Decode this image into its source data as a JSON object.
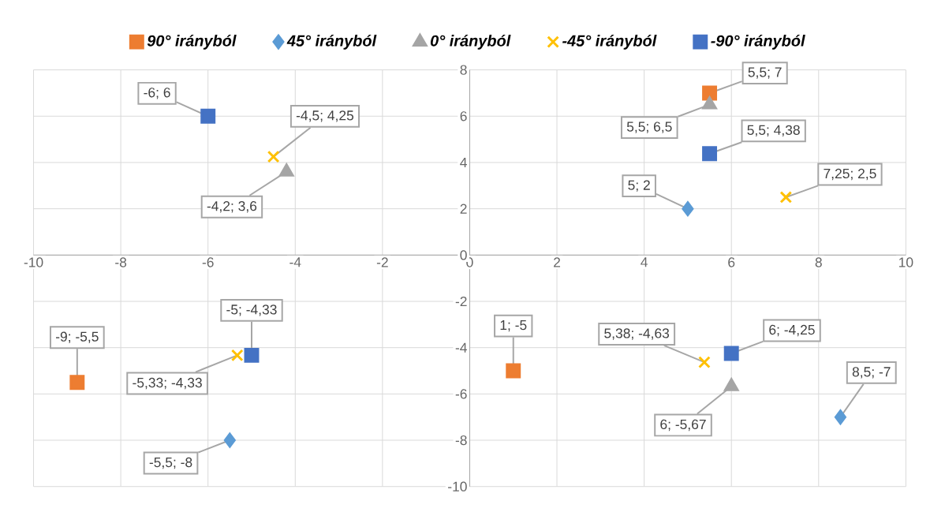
{
  "chart_data": {
    "type": "scatter",
    "series": [
      {
        "name": "90° irányból",
        "color": "#ed7d31",
        "marker": "square",
        "x": [
          5.5,
          -9,
          1
        ],
        "values": [
          7,
          -5.5,
          -5
        ],
        "value_labels": [
          "5,5; 7",
          "-9; -5,5",
          "1; -5"
        ]
      },
      {
        "name": "45° irányból",
        "color": "#5b9bd5",
        "marker": "diamond",
        "x": [
          5,
          -5.5,
          8.5
        ],
        "values": [
          2,
          -8,
          -7
        ],
        "value_labels": [
          "5; 2",
          "-5,5; -8",
          "8,5; -7"
        ]
      },
      {
        "name": "0° irányból",
        "color": "#a5a5a5",
        "marker": "triangle",
        "x": [
          5.5,
          -4.2,
          6
        ],
        "values": [
          6.5,
          3.6,
          -5.67
        ],
        "value_labels": [
          "5,5; 6,5",
          "-4,2; 3,6",
          "6; -5,67"
        ]
      },
      {
        "name": "-45° irányból",
        "color": "#ffc000",
        "marker": "cross",
        "x": [
          -4.5,
          7.25,
          5.38,
          -5.33
        ],
        "values": [
          4.25,
          2.5,
          -4.63,
          -4.33
        ],
        "value_labels": [
          "-4,5; 4,25",
          "7,25; 2,5",
          "5,38; -4,63",
          "-5,33; -4,33"
        ]
      },
      {
        "name": "-90° irányból",
        "color": "#4472c4",
        "marker": "square",
        "x": [
          -6,
          5.5,
          -5,
          6
        ],
        "values": [
          6,
          4.38,
          -4.33,
          -4.25
        ],
        "value_labels": [
          "-6; 6",
          "5,5; 4,38",
          "-5; -4,33",
          "6; -4,25"
        ]
      }
    ],
    "xlim": [
      -10,
      10
    ],
    "ylim": [
      -10,
      8
    ],
    "xticks": [
      -10,
      -8,
      -6,
      -4,
      -2,
      0,
      2,
      4,
      6,
      8,
      10
    ],
    "yticks": [
      -10,
      -8,
      -6,
      -4,
      -2,
      0,
      2,
      4,
      6,
      8
    ],
    "grid": true,
    "legend": "top"
  }
}
